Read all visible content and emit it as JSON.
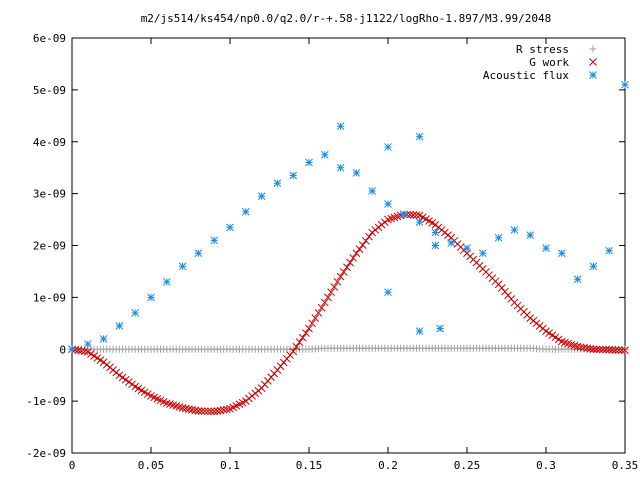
{
  "chart_data": {
    "type": "scatter",
    "title": "m2/js514/ks454/np0.0/q2.0/r-+.58-j1122/logRho-1.897/M3.99/2048",
    "xlabel": "",
    "ylabel": "",
    "xlim": [
      0,
      0.35
    ],
    "ylim": [
      -2e-09,
      6e-09
    ],
    "grid": false,
    "legend_position": "top-right",
    "x_ticks": [
      {
        "value": 0,
        "label": "0"
      },
      {
        "value": 0.05,
        "label": "0.05"
      },
      {
        "value": 0.1,
        "label": "0.1"
      },
      {
        "value": 0.15,
        "label": "0.15"
      },
      {
        "value": 0.2,
        "label": "0.2"
      },
      {
        "value": 0.25,
        "label": "0.25"
      },
      {
        "value": 0.3,
        "label": "0.3"
      },
      {
        "value": 0.35,
        "label": "0.35"
      }
    ],
    "y_ticks": [
      {
        "value": -2e-09,
        "label": "-2e-09"
      },
      {
        "value": -1e-09,
        "label": "-1e-09"
      },
      {
        "value": 0,
        "label": "0"
      },
      {
        "value": 1e-09,
        "label": "1e-09"
      },
      {
        "value": 2e-09,
        "label": "2e-09"
      },
      {
        "value": 3e-09,
        "label": "3e-09"
      },
      {
        "value": 4e-09,
        "label": "4e-09"
      },
      {
        "value": 5e-09,
        "label": "5e-09"
      },
      {
        "value": 6e-09,
        "label": "6e-09"
      }
    ],
    "series": [
      {
        "name": "R stress",
        "marker": "plus",
        "color": "#a0a0a0",
        "x": [
          0,
          0.01,
          0.02,
          0.03,
          0.04,
          0.05,
          0.06,
          0.07,
          0.08,
          0.09,
          0.1,
          0.11,
          0.12,
          0.13,
          0.14,
          0.15,
          0.16,
          0.17,
          0.18,
          0.19,
          0.2,
          0.21,
          0.22,
          0.23,
          0.24,
          0.25,
          0.26,
          0.27,
          0.28,
          0.29,
          0.3,
          0.31,
          0.32,
          0.33,
          0.34,
          0.35
        ],
        "y": [
          0,
          0,
          0,
          0,
          0,
          0,
          0,
          0,
          0,
          0,
          0,
          0,
          0,
          0,
          0,
          0,
          2e-11,
          2e-11,
          2e-11,
          2e-11,
          2e-11,
          2e-11,
          2e-11,
          2e-11,
          2e-11,
          2e-11,
          2e-11,
          2e-11,
          2e-11,
          2e-11,
          0,
          0,
          0,
          0,
          0,
          0
        ]
      },
      {
        "name": "G work",
        "marker": "cross",
        "color": "#cc0000",
        "x": [
          0,
          0.01,
          0.02,
          0.03,
          0.04,
          0.05,
          0.06,
          0.07,
          0.08,
          0.09,
          0.1,
          0.11,
          0.12,
          0.13,
          0.14,
          0.15,
          0.16,
          0.17,
          0.18,
          0.19,
          0.2,
          0.21,
          0.22,
          0.23,
          0.24,
          0.25,
          0.26,
          0.27,
          0.28,
          0.29,
          0.3,
          0.31,
          0.32,
          0.33,
          0.34,
          0.35
        ],
        "y": [
          0,
          -5e-11,
          -2.5e-10,
          -5e-10,
          -7.2e-10,
          -9e-10,
          -1.04e-09,
          -1.13e-09,
          -1.19e-09,
          -1.2e-09,
          -1.15e-09,
          -1e-09,
          -7.5e-10,
          -4e-10,
          -4e-11,
          4e-10,
          9e-10,
          1.4e-09,
          1.85e-09,
          2.25e-09,
          2.5e-09,
          2.6e-09,
          2.58e-09,
          2.4e-09,
          2.15e-09,
          1.85e-09,
          1.55e-09,
          1.25e-09,
          9e-10,
          6e-10,
          3.5e-10,
          1.5e-10,
          5e-11,
          0,
          -1e-11,
          -2e-11
        ]
      },
      {
        "name": "Acoustic flux",
        "marker": "star",
        "color": "#1a8ce6",
        "x": [
          0,
          0.01,
          0.02,
          0.03,
          0.04,
          0.05,
          0.06,
          0.07,
          0.08,
          0.09,
          0.1,
          0.11,
          0.12,
          0.13,
          0.14,
          0.15,
          0.16,
          0.17,
          0.18,
          0.19,
          0.2,
          0.21,
          0.22,
          0.23,
          0.24,
          0.25,
          0.26,
          0.27,
          0.28,
          0.29,
          0.3,
          0.31,
          0.32,
          0.33,
          0.34,
          0.35,
          0.17,
          0.2,
          0.22,
          0.23,
          0.22,
          0.233,
          0.2
        ],
        "y": [
          0,
          1e-10,
          2e-10,
          4.5e-10,
          7e-10,
          1e-09,
          1.3e-09,
          1.6e-09,
          1.85e-09,
          2.1e-09,
          2.35e-09,
          2.65e-09,
          2.95e-09,
          3.2e-09,
          3.35e-09,
          3.6e-09,
          3.75e-09,
          3.5e-09,
          3.4e-09,
          3.05e-09,
          2.8e-09,
          2.6e-09,
          2.45e-09,
          2.25e-09,
          2.05e-09,
          1.95e-09,
          1.85e-09,
          2.15e-09,
          2.3e-09,
          2.2e-09,
          1.95e-09,
          1.85e-09,
          1.35e-09,
          1.6e-09,
          1.9e-09,
          5.1e-09,
          4.3e-09,
          3.9e-09,
          4.1e-09,
          2e-09,
          3.5e-10,
          4e-10,
          1.1e-09
        ]
      }
    ]
  }
}
